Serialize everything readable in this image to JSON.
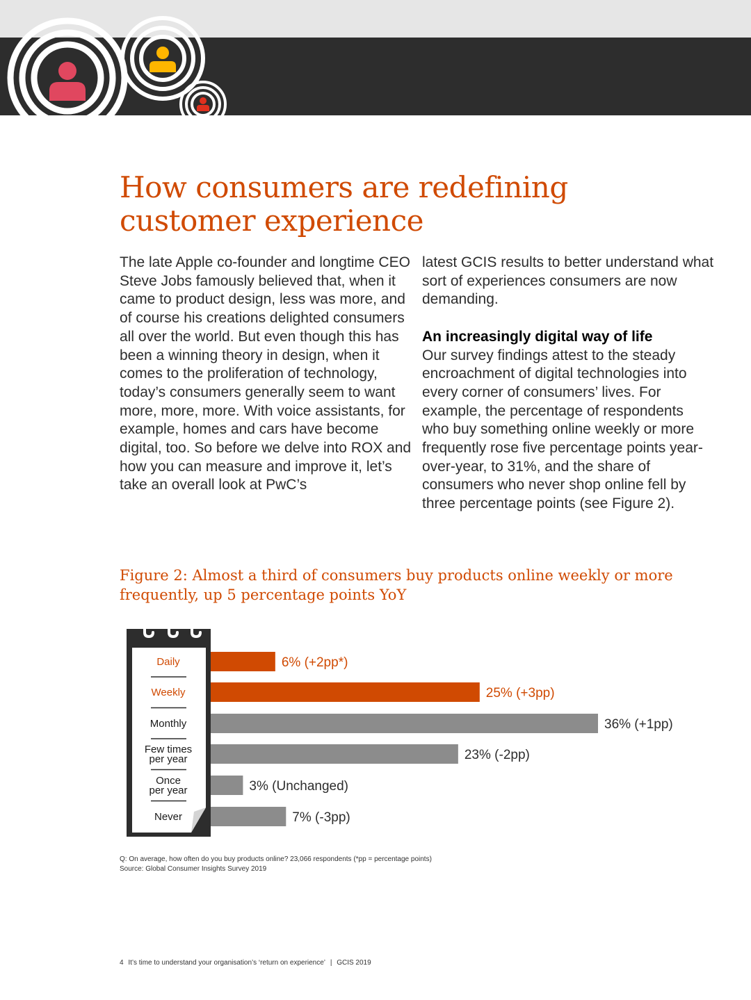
{
  "header": {
    "decoration_icons": [
      "person-icon-red",
      "person-icon-yellow",
      "person-icon-small-red"
    ]
  },
  "article": {
    "title": "How consumers are redefining customer experience",
    "left_column": "The late Apple co-founder and longtime CEO Steve Jobs famously believed that, when it came to product design, less was more, and of course his creations delighted consumers all over the world. But even though this has been a winning theory in design, when it comes to the proliferation of technology, today’s consumers generally seem to want more, more, more. With voice assistants, for example, homes and cars have become digital, too. So before we delve into ROX and how you can measure and improve it, let’s take an overall look at PwC’s",
    "right_column_intro": "latest GCIS results to better understand what sort of experiences consumers are now demanding.",
    "subheading": "An increasingly digital way of life",
    "right_column_body": "Our survey findings attest to the steady encroachment of digital technologies into every corner of consumers’ lives. For example, the percentage of respondents who buy something online weekly or more frequently rose five percentage points year-over-year, to 31%, and the share of consumers who never shop online fell by three percentage points (see Figure 2)."
  },
  "figure": {
    "title": "Figure 2: Almost a third of consumers buy products online weekly or more frequently, up 5 percentage points YoY",
    "note": "Q: On average, how often do you buy products online?  23,066 respondents (*pp = percentage points)",
    "source": "Source: Global Consumer Insights Survey 2019"
  },
  "chart_data": {
    "type": "bar",
    "orientation": "horizontal",
    "title": "Figure 2: Almost a third of consumers buy products online weekly or more frequently, up 5 percentage points YoY",
    "categories": [
      "Daily",
      "Weekly",
      "Monthly",
      "Few times per year",
      "Once per year",
      "Never"
    ],
    "category_lines": [
      [
        "Daily"
      ],
      [
        "Weekly"
      ],
      [
        "Monthly"
      ],
      [
        "Few times",
        "per year"
      ],
      [
        "Once",
        "per year"
      ],
      [
        "Never"
      ]
    ],
    "values": [
      6,
      25,
      36,
      23,
      3,
      7
    ],
    "value_labels": [
      "6% (+2pp*)",
      "25% (+3pp)",
      "36% (+1pp)",
      "23% (-2pp)",
      "3% (Unchanged)",
      "7% (-3pp)"
    ],
    "highlight": [
      true,
      true,
      false,
      false,
      false,
      false
    ],
    "colors": {
      "highlight": "#d04a02",
      "default": "#8c8c8c"
    },
    "xlim": [
      0,
      36
    ],
    "unit": "%"
  },
  "footer": {
    "page_number": "4",
    "text": "It’s time to understand your organisation’s ‘return on experience’",
    "separator": "|",
    "report": "GCIS 2019"
  }
}
